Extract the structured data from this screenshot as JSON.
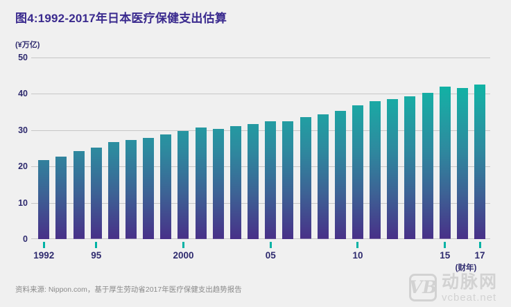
{
  "title": "图4:1992-2017年日本医疗保健支出估算",
  "unit_label": "(¥万亿)",
  "fiscal_year_label": "(财年)",
  "source_note": "资料来源: Nippon.com，基于厚生劳动省2017年医疗保健支出趋势报告",
  "logo": {
    "monogram": "VB",
    "brand_name": "动脉网",
    "domain": "vcbeat.net"
  },
  "colors": {
    "background": "#f0f0f0",
    "title_text": "#3a2a8e",
    "axis_text": "#2e2a6e",
    "gridline": "#c6c6c6",
    "tick_mark": "#00b2a4",
    "source_text": "#8a8a8a",
    "logo_gray": "#d2d2d2",
    "bar_gradient": [
      "#00c2a4",
      "#1ba8a4",
      "#2d8b9f",
      "#3d6295",
      "#483088"
    ]
  },
  "chart_data": {
    "type": "bar",
    "title": "图4:1992-2017年日本医疗保健支出估算",
    "xlabel": "(财年)",
    "ylabel": "(¥万亿)",
    "ylim": [
      0,
      50
    ],
    "y_ticks": [
      0,
      10,
      20,
      30,
      40,
      50
    ],
    "grid": true,
    "legend": "none",
    "categories": [
      1992,
      1993,
      1994,
      1995,
      1996,
      1997,
      1998,
      1999,
      2000,
      2001,
      2002,
      2003,
      2004,
      2005,
      2006,
      2007,
      2008,
      2009,
      2010,
      2011,
      2012,
      2013,
      2014,
      2015,
      2016,
      2017
    ],
    "values": [
      21.8,
      22.7,
      24.2,
      25.1,
      26.7,
      27.2,
      27.9,
      28.9,
      29.7,
      30.7,
      30.3,
      31.2,
      31.7,
      32.4,
      32.5,
      33.5,
      34.3,
      35.4,
      36.8,
      37.9,
      38.6,
      39.4,
      40.2,
      41.9,
      41.6,
      42.6
    ],
    "x_tick_labels": [
      {
        "index": 0,
        "label": "1992"
      },
      {
        "index": 3,
        "label": "95"
      },
      {
        "index": 8,
        "label": "2000"
      },
      {
        "index": 13,
        "label": "05"
      },
      {
        "index": 18,
        "label": "10"
      },
      {
        "index": 23,
        "label": "15"
      },
      {
        "index": 25,
        "label": "17"
      }
    ]
  }
}
